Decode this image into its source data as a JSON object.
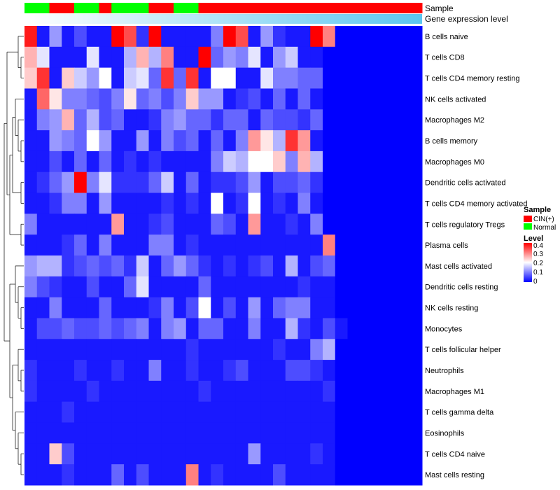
{
  "chart_data": {
    "type": "heatmap",
    "annotations": {
      "sample_track_label": "Sample",
      "expression_track_label": "Gene expression level",
      "sample_groups": [
        "Normal",
        "Normal",
        "CIN(+)",
        "CIN(+)",
        "Normal",
        "Normal",
        "CIN(+)",
        "Normal",
        "Normal",
        "Normal",
        "CIN(+)",
        "CIN(+)",
        "Normal",
        "Normal",
        "CIN(+)",
        "CIN(+)",
        "CIN(+)",
        "CIN(+)",
        "CIN(+)",
        "CIN(+)",
        "CIN(+)",
        "CIN(+)",
        "CIN(+)",
        "CIN(+)",
        "CIN(+)",
        "CIN(+)",
        "CIN(+)",
        "CIN(+)",
        "CIN(+)",
        "CIN(+)",
        "CIN(+)",
        "CIN(+)"
      ],
      "expression_gradient": [
        "#ffffff",
        "#5bc6f0"
      ]
    },
    "rows": [
      "B cells naive",
      "T cells CD8",
      "T cells CD4 memory resting",
      "NK cells activated",
      "Macrophages M2",
      "B cells memory",
      "Macrophages M0",
      "Dendritic cells activated",
      "T cells CD4 memory activated",
      "T cells regulatory  Tregs",
      "Plasma cells",
      "Mast cells activated",
      "Dendritic cells resting",
      "NK cells resting",
      "Monocytes",
      "T cells follicular helper",
      "Neutrophils",
      "Macrophages M1",
      "T cells gamma delta",
      "Eosinophils",
      "T cells CD4 naive",
      "Mast cells resting"
    ],
    "values": [
      [
        0.38,
        0.02,
        0.12,
        0.02,
        0.06,
        0.02,
        0.02,
        0.4,
        0.34,
        0.04,
        0.4,
        0.02,
        0.02,
        0.02,
        0.02,
        0.1,
        0.4,
        0.34,
        0.02,
        0.12,
        0.04,
        0.02,
        0.02,
        0.4,
        0.3,
        0,
        0,
        0,
        0,
        0,
        0,
        0
      ],
      [
        0.26,
        0.18,
        0.02,
        0.02,
        0.02,
        0.18,
        0.02,
        0.02,
        0.14,
        0.26,
        0.14,
        0.3,
        0.02,
        0.02,
        0.4,
        0.08,
        0.12,
        0.1,
        0.18,
        0.02,
        0.12,
        0.16,
        0.02,
        0.02,
        0,
        0,
        0,
        0,
        0,
        0,
        0,
        0
      ],
      [
        0.24,
        0.36,
        0.02,
        0.24,
        0.16,
        0.12,
        0.2,
        0.02,
        0.16,
        0.18,
        0.08,
        0.36,
        0.08,
        0.36,
        0.02,
        0.2,
        0.2,
        0.02,
        0.02,
        0.18,
        0.1,
        0.1,
        0.08,
        0.08,
        0,
        0,
        0,
        0,
        0,
        0,
        0,
        0
      ],
      [
        0.02,
        0.32,
        0.22,
        0.1,
        0.1,
        0.08,
        0.06,
        0.1,
        0.22,
        0.08,
        0.1,
        0.06,
        0.1,
        0.24,
        0.12,
        0.12,
        0.02,
        0.04,
        0.06,
        0.02,
        0.08,
        0.02,
        0.08,
        0.02,
        0,
        0,
        0,
        0,
        0,
        0,
        0,
        0
      ],
      [
        0.02,
        0.1,
        0.12,
        0.26,
        0.08,
        0.14,
        0.06,
        0.08,
        0.02,
        0.02,
        0.04,
        0.1,
        0.12,
        0.08,
        0.08,
        0.04,
        0.08,
        0.08,
        0.02,
        0.08,
        0.06,
        0.06,
        0.04,
        0.08,
        0,
        0,
        0,
        0,
        0,
        0,
        0,
        0
      ],
      [
        0.02,
        0.02,
        0.12,
        0.1,
        0.08,
        0.2,
        0.12,
        0.02,
        0.02,
        0.12,
        0.02,
        0.1,
        0.06,
        0.08,
        0.02,
        0.08,
        0.02,
        0.1,
        0.28,
        0.22,
        0.14,
        0.36,
        0.28,
        0.02,
        0,
        0,
        0,
        0,
        0,
        0,
        0,
        0
      ],
      [
        0.02,
        0.02,
        0.06,
        0.02,
        0.08,
        0.02,
        0.08,
        0.02,
        0.04,
        0.02,
        0.04,
        0.02,
        0.02,
        0.02,
        0.02,
        0.1,
        0.16,
        0.14,
        0.2,
        0.2,
        0.24,
        0.1,
        0.26,
        0.14,
        0,
        0,
        0,
        0,
        0,
        0,
        0,
        0
      ],
      [
        0.02,
        0.04,
        0.08,
        0.12,
        0.4,
        0.1,
        0.18,
        0.04,
        0.04,
        0.04,
        0.08,
        0.16,
        0.02,
        0.08,
        0.02,
        0.04,
        0.04,
        0.06,
        0.12,
        0.02,
        0.06,
        0.06,
        0.08,
        0.04,
        0,
        0,
        0,
        0,
        0,
        0,
        0,
        0
      ],
      [
        0.02,
        0.02,
        0.04,
        0.1,
        0.1,
        0.02,
        0.12,
        0.02,
        0.02,
        0.02,
        0.02,
        0.04,
        0.02,
        0.04,
        0.02,
        0.2,
        0.02,
        0.04,
        0.2,
        0.02,
        0.04,
        0.02,
        0.1,
        0.02,
        0,
        0,
        0,
        0,
        0,
        0,
        0,
        0
      ],
      [
        0.1,
        0.02,
        0.02,
        0.02,
        0.02,
        0.02,
        0.02,
        0.28,
        0.02,
        0.02,
        0.04,
        0.06,
        0.02,
        0.02,
        0.02,
        0.08,
        0.06,
        0.02,
        0.28,
        0.02,
        0.02,
        0.04,
        0.02,
        0.1,
        0,
        0,
        0,
        0,
        0,
        0,
        0,
        0
      ],
      [
        0.02,
        0.02,
        0.02,
        0.04,
        0.08,
        0.02,
        0.1,
        0.02,
        0.02,
        0.02,
        0.1,
        0.1,
        0.02,
        0.04,
        0.02,
        0.02,
        0.02,
        0.02,
        0.02,
        0.02,
        0.02,
        0.02,
        0.02,
        0.02,
        0.3,
        0,
        0,
        0,
        0,
        0,
        0,
        0
      ],
      [
        0.12,
        0.14,
        0.14,
        0.04,
        0.06,
        0.08,
        0.06,
        0.08,
        0.04,
        0.16,
        0.02,
        0.08,
        0.12,
        0.08,
        0.04,
        0.02,
        0.04,
        0.02,
        0.04,
        0.06,
        0.02,
        0.14,
        0.02,
        0.06,
        0.08,
        0,
        0,
        0,
        0,
        0,
        0,
        0
      ],
      [
        0.1,
        0.06,
        0.04,
        0.02,
        0.02,
        0.06,
        0.02,
        0.02,
        0.08,
        0.18,
        0.02,
        0.02,
        0.02,
        0.02,
        0.08,
        0.02,
        0.02,
        0.02,
        0.02,
        0.02,
        0.02,
        0.02,
        0.04,
        0.02,
        0.02,
        0,
        0,
        0,
        0,
        0,
        0,
        0
      ],
      [
        0.02,
        0.02,
        0.1,
        0.02,
        0.02,
        0.02,
        0.08,
        0.02,
        0.02,
        0.02,
        0.04,
        0.1,
        0.02,
        0.06,
        0.2,
        0.02,
        0.06,
        0.02,
        0.12,
        0.02,
        0.08,
        0.1,
        0.1,
        0.02,
        0.02,
        0,
        0,
        0,
        0,
        0,
        0,
        0
      ],
      [
        0.02,
        0.06,
        0.06,
        0.08,
        0.06,
        0.06,
        0.08,
        0.06,
        0.08,
        0.1,
        0.02,
        0.1,
        0.12,
        0.02,
        0.08,
        0.08,
        0.02,
        0.02,
        0.1,
        0.02,
        0.02,
        0.14,
        0.04,
        0.02,
        0.06,
        0.02,
        0,
        0,
        0,
        0,
        0,
        0
      ],
      [
        0.02,
        0.02,
        0.02,
        0.02,
        0.02,
        0.02,
        0.02,
        0.02,
        0.02,
        0.02,
        0.02,
        0.02,
        0.02,
        0.04,
        0.02,
        0.02,
        0.02,
        0.02,
        0.02,
        0.02,
        0.04,
        0.02,
        0.02,
        0.1,
        0.14,
        0,
        0,
        0,
        0,
        0,
        0,
        0
      ],
      [
        0.04,
        0.02,
        0.02,
        0.02,
        0.04,
        0.02,
        0.02,
        0.04,
        0.02,
        0.02,
        0.1,
        0.02,
        0.02,
        0.04,
        0.02,
        0.02,
        0.04,
        0.06,
        0.02,
        0.02,
        0.02,
        0.06,
        0.06,
        0.04,
        0.02,
        0,
        0,
        0,
        0,
        0,
        0,
        0
      ],
      [
        0.04,
        0.02,
        0.02,
        0.02,
        0.02,
        0.04,
        0.02,
        0.02,
        0.02,
        0.02,
        0.02,
        0.02,
        0.02,
        0.02,
        0.04,
        0.02,
        0.02,
        0.02,
        0.02,
        0.02,
        0.02,
        0.02,
        0.02,
        0.02,
        0.04,
        0,
        0,
        0,
        0,
        0,
        0,
        0
      ],
      [
        0.02,
        0.02,
        0.02,
        0.04,
        0.02,
        0.02,
        0.02,
        0.02,
        0.02,
        0.02,
        0.02,
        0.02,
        0.02,
        0.02,
        0.02,
        0.02,
        0.02,
        0.02,
        0.02,
        0.02,
        0.02,
        0.02,
        0.02,
        0.02,
        0.02,
        0,
        0,
        0,
        0,
        0,
        0,
        0
      ],
      [
        0.02,
        0.02,
        0.02,
        0.02,
        0.02,
        0.02,
        0.02,
        0.02,
        0.02,
        0.02,
        0.02,
        0.02,
        0.02,
        0.02,
        0.02,
        0.02,
        0.02,
        0.02,
        0.02,
        0.02,
        0.02,
        0.02,
        0.02,
        0.02,
        0.02,
        0,
        0,
        0,
        0,
        0,
        0,
        0
      ],
      [
        0.02,
        0.02,
        0.24,
        0.06,
        0.02,
        0.02,
        0.02,
        0.02,
        0.02,
        0.02,
        0.02,
        0.02,
        0.02,
        0.02,
        0.02,
        0.02,
        0.02,
        0.02,
        0.12,
        0.02,
        0.02,
        0.02,
        0.02,
        0.04,
        0.02,
        0,
        0,
        0,
        0,
        0,
        0,
        0
      ],
      [
        0.02,
        0.02,
        0.02,
        0.04,
        0.02,
        0.02,
        0.02,
        0.08,
        0.02,
        0.06,
        0.02,
        0.02,
        0.02,
        0.3,
        0.02,
        0.04,
        0.02,
        0.02,
        0.02,
        0.02,
        0.06,
        0.02,
        0.02,
        0.02,
        0.02,
        0,
        0,
        0,
        0,
        0,
        0,
        0
      ]
    ],
    "columns_shown": 25,
    "color_scale": {
      "min": 0,
      "max": 0.4,
      "stops": [
        {
          "value": 0,
          "color": "#0000ff"
        },
        {
          "value": 0.2,
          "color": "#ffffff"
        },
        {
          "value": 0.4,
          "color": "#ff0000"
        }
      ]
    },
    "legend": {
      "sample_title": "Sample",
      "sample_entries": [
        {
          "label": "CIN(+)",
          "color": "#ff0000"
        },
        {
          "label": "Normal",
          "color": "#00ff00"
        }
      ],
      "level_title": "Level",
      "level_ticks": [
        "0.4",
        "0.3",
        "0.2",
        "0.1",
        "0"
      ],
      "placement": "right"
    },
    "dendrogram_side": "left"
  }
}
